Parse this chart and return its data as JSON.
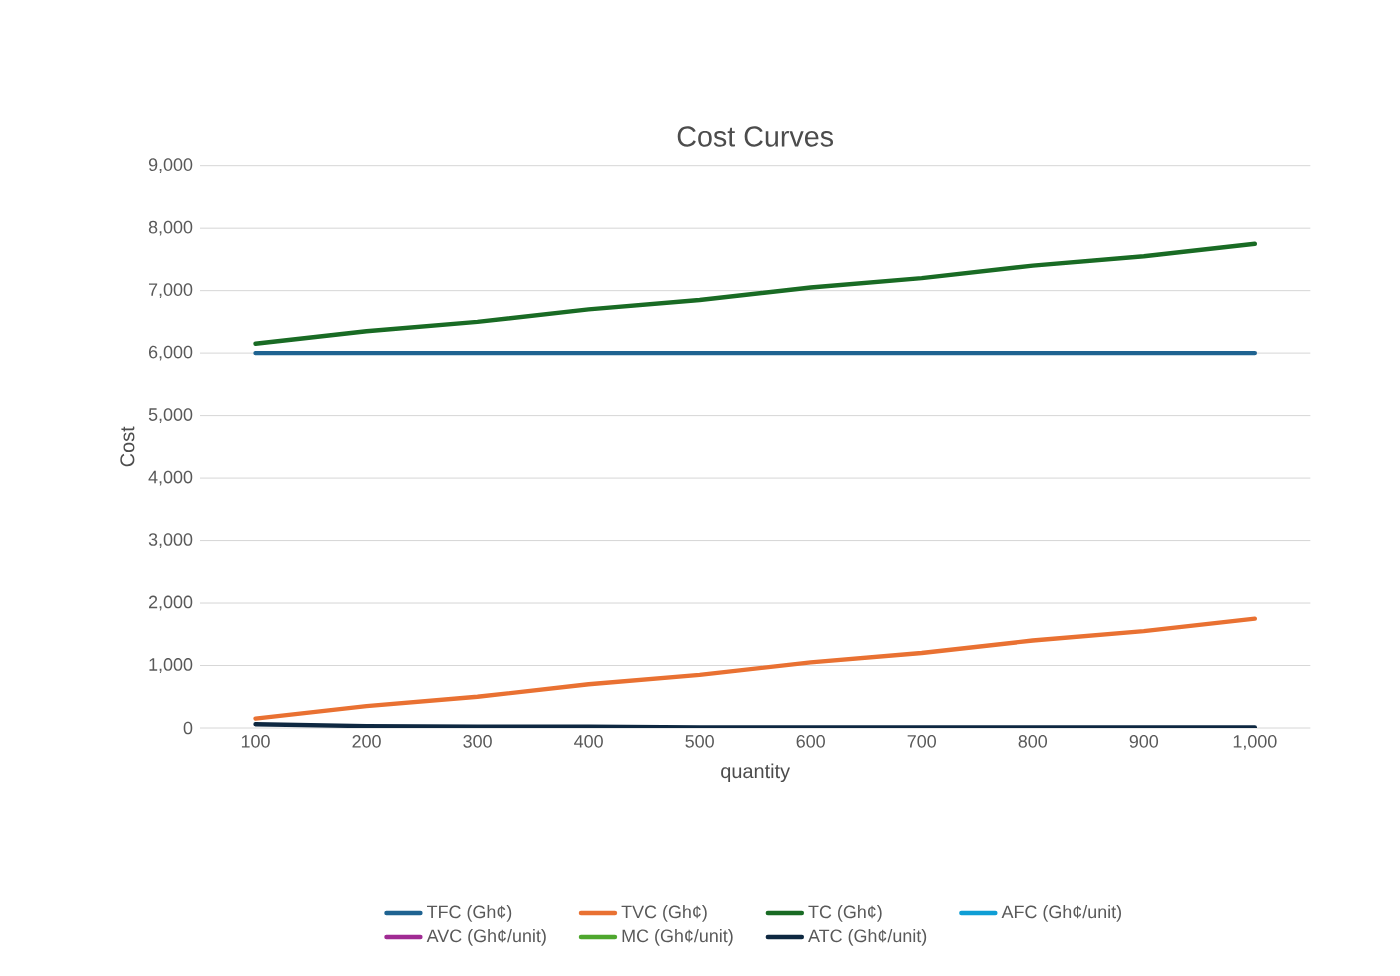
{
  "chart_data": {
    "type": "line",
    "title": "Cost Curves",
    "xlabel": "quantity",
    "ylabel": "Cost",
    "x": [
      100,
      200,
      300,
      400,
      500,
      600,
      700,
      800,
      900,
      1000
    ],
    "xlim": [
      50,
      1050
    ],
    "ylim": [
      0,
      9000
    ],
    "xticks": [
      100,
      200,
      300,
      400,
      500,
      600,
      700,
      800,
      900,
      {
        "value": 1000,
        "label": "1,000"
      }
    ],
    "yticks": [
      0,
      {
        "value": 1000,
        "label": "1,000"
      },
      {
        "value": 2000,
        "label": "2,000"
      },
      {
        "value": 3000,
        "label": "3,000"
      },
      {
        "value": 4000,
        "label": "4,000"
      },
      {
        "value": 5000,
        "label": "5,000"
      },
      {
        "value": 6000,
        "label": "6,000"
      },
      {
        "value": 7000,
        "label": "7,000"
      },
      {
        "value": 8000,
        "label": "8,000"
      },
      {
        "value": 9000,
        "label": "9,000"
      }
    ],
    "grid": "y",
    "legend": "bottom",
    "marker": "none",
    "line_style": "solid",
    "series": [
      {
        "name": "TFC (Gh¢)",
        "color": "#1f6391",
        "values": [
          6000,
          6000,
          6000,
          6000,
          6000,
          6000,
          6000,
          6000,
          6000,
          6000
        ]
      },
      {
        "name": "TVC (Gh¢)",
        "color": "#e97132",
        "values": [
          150,
          350,
          500,
          700,
          850,
          1050,
          1200,
          1400,
          1550,
          1750
        ]
      },
      {
        "name": "TC (Gh¢)",
        "color": "#196b24",
        "values": [
          6150,
          6350,
          6500,
          6700,
          6850,
          7050,
          7200,
          7400,
          7550,
          7750
        ]
      },
      {
        "name": "AFC (Gh¢/unit)",
        "color": "#0f9ed5",
        "values": [
          null,
          null,
          null,
          null,
          null,
          null,
          null,
          null,
          null,
          null
        ]
      },
      {
        "name": "AVC (Gh¢/unit)",
        "color": "#a02b93",
        "values": [
          null,
          null,
          null,
          null,
          null,
          null,
          null,
          null,
          null,
          null
        ]
      },
      {
        "name": "MC (Gh¢/unit)",
        "color": "#4ea72e",
        "values": [
          null,
          null,
          null,
          null,
          null,
          null,
          null,
          null,
          null,
          null
        ]
      },
      {
        "name": "ATC (Gh¢/unit)",
        "color": "#0e2841",
        "values": [
          60,
          30,
          20,
          20,
          10,
          10,
          10,
          10,
          10,
          10
        ]
      }
    ]
  }
}
